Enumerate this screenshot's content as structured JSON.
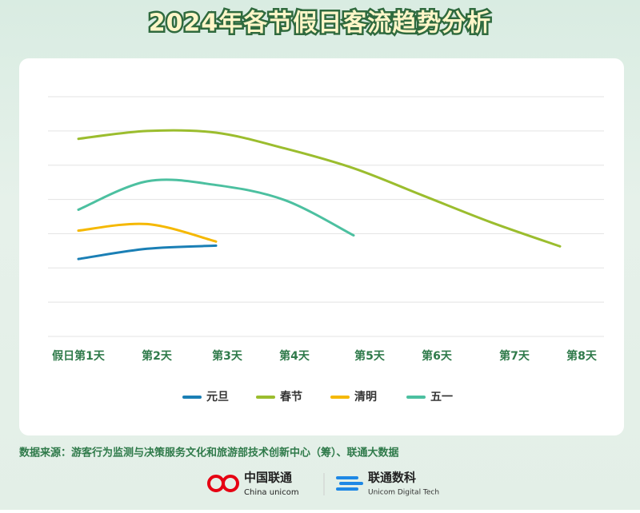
{
  "chart_data": {
    "type": "line",
    "title": "2024年各节假日客流趋势分析",
    "categories": [
      "假日第1天",
      "第2天",
      "第3天",
      "第4天",
      "第5天",
      "第6天",
      "第7天",
      "第8天"
    ],
    "series": [
      {
        "name": "元旦",
        "color": "#1a7fb5",
        "values": [
          2.26,
          2.56,
          2.65,
          null,
          null,
          null,
          null,
          null
        ]
      },
      {
        "name": "春节",
        "color": "#9bbd2e",
        "values": [
          5.77,
          6.0,
          5.95,
          5.49,
          4.91,
          4.12,
          3.33,
          2.63
        ]
      },
      {
        "name": "清明",
        "color": "#f5b800",
        "values": [
          3.09,
          3.28,
          2.77,
          null,
          null,
          null,
          null,
          null
        ]
      },
      {
        "name": "五一",
        "color": "#4cc0a0",
        "values": [
          3.7,
          4.53,
          4.42,
          3.98,
          2.95,
          null,
          null,
          null
        ]
      }
    ],
    "ylim": [
      0,
      7
    ],
    "yticks": [
      0,
      1,
      2,
      3,
      4,
      5,
      6,
      7
    ],
    "grid": true,
    "source": "数据来源：游客行为监测与决策服务文化和旅游部技术创新中心（筹）、联通大数据"
  },
  "footer": {
    "logo1": "中国联通",
    "logo1_en": "China unicom",
    "logo2": "联通数科",
    "logo2_en": "Unicom Digital Tech"
  }
}
